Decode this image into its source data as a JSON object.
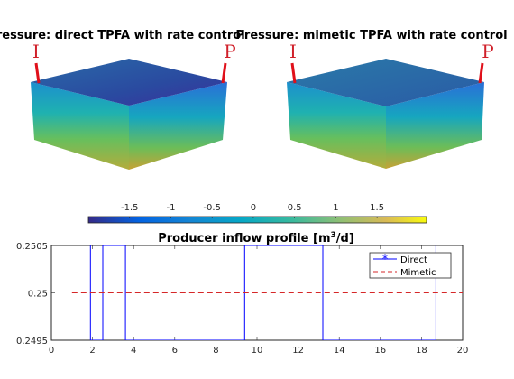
{
  "titles": {
    "left_block": "Pressure: direct TPFA with rate control",
    "right_block": "Pressure: mimetic TPFA with rate control",
    "inflow_pre": "Producer inflow profile [m",
    "inflow_sup": "3",
    "inflow_post": "/d]"
  },
  "wells": {
    "injector": "I",
    "producer": "P"
  },
  "colorbar": {
    "ticks": [
      "-1.5",
      "-1",
      "-0.5",
      "0",
      "0.5",
      "1",
      "1.5"
    ],
    "tick_values": [
      -1.5,
      -1,
      -0.5,
      0,
      0.5,
      1,
      1.5
    ],
    "range": [
      -2.0,
      2.1
    ],
    "colormap": "parula"
  },
  "chart_data": {
    "type": "line",
    "title": "Producer inflow profile [m3/d]",
    "xlim": [
      0,
      20
    ],
    "ylim": [
      0.2495,
      0.2505
    ],
    "xticks": [
      "0",
      "2",
      "4",
      "6",
      "8",
      "10",
      "12",
      "14",
      "16",
      "18",
      "20"
    ],
    "xtick_values": [
      0,
      2,
      4,
      6,
      8,
      10,
      12,
      14,
      16,
      18,
      20
    ],
    "yticks": [
      "0.2495",
      "0.25",
      "0.2505"
    ],
    "ytick_values": [
      0.2495,
      0.25,
      0.2505
    ],
    "legend_position": "top-right",
    "series": [
      {
        "name": "Direct",
        "style": "solid",
        "marker": "*",
        "color": "#0000ff",
        "x": [
          1.9,
          1.9,
          2.5,
          2.5,
          3.6,
          3.6,
          9.4,
          9.4,
          13.2,
          13.2,
          18.7,
          18.7
        ],
        "y": [
          0.2505,
          0.2495,
          0.2495,
          0.2505,
          0.2505,
          0.2495,
          0.2495,
          0.2505,
          0.2505,
          0.2495,
          0.2495,
          0.2505
        ]
      },
      {
        "name": "Mimetic",
        "style": "dashed",
        "color": "#d62728",
        "x": [
          1,
          20
        ],
        "y": [
          0.25,
          0.25
        ]
      }
    ]
  }
}
